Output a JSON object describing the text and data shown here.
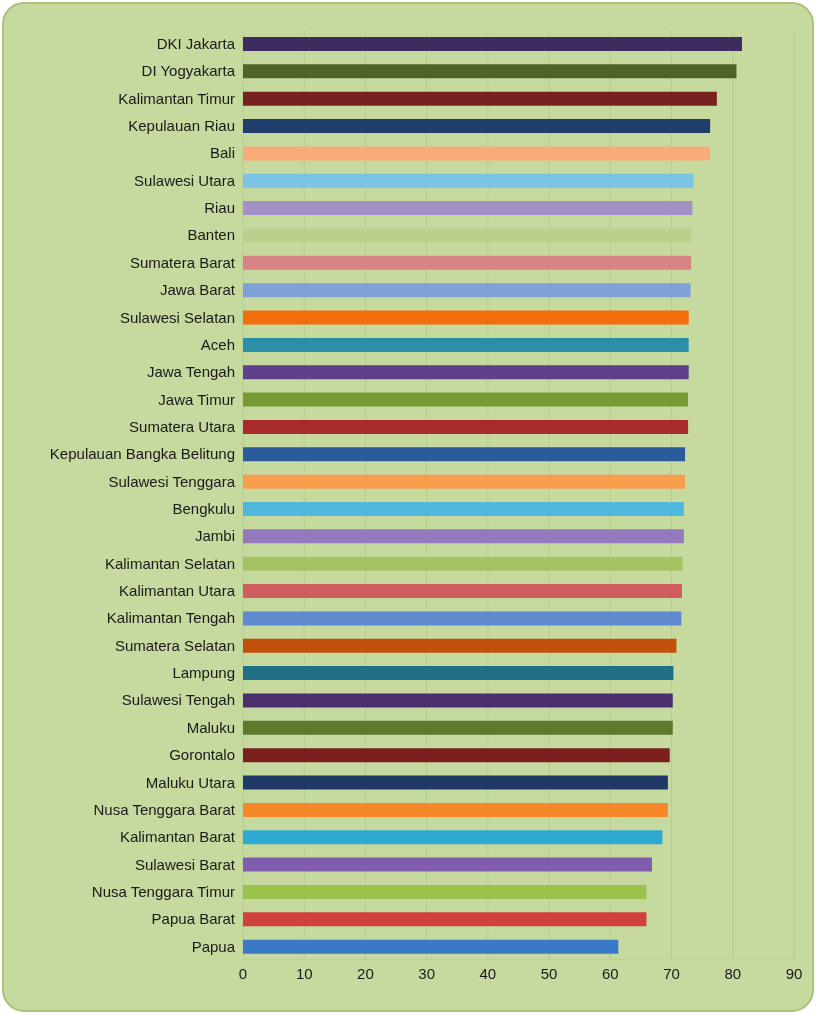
{
  "chart_data": {
    "type": "bar",
    "orientation": "horizontal",
    "categories": [
      "DKI Jakarta",
      "DI Yogyakarta",
      "Kalimantan Timur",
      "Kepulauan Riau",
      "Bali",
      "Sulawesi Utara",
      "Riau",
      "Banten",
      "Sumatera Barat",
      "Jawa Barat",
      "Sulawesi Selatan",
      "Aceh",
      "Jawa Tengah",
      "Jawa Timur",
      "Sumatera Utara",
      "Kepulauan Bangka Belitung",
      "Sulawesi Tenggara",
      "Bengkulu",
      "Jambi",
      "Kalimantan Selatan",
      "Kalimantan Utara",
      "Kalimantan Tengah",
      "Sumatera Selatan",
      "Lampung",
      "Sulawesi Tengah",
      "Maluku",
      "Gorontalo",
      "Maluku Utara",
      "Nusa Tenggara Barat",
      "Kalimantan Barat",
      "Sulawesi Barat",
      "Nusa Tenggara Timur",
      "Papua Barat",
      "Papua"
    ],
    "values": [
      81.5,
      80.6,
      77.4,
      76.3,
      76.3,
      73.6,
      73.4,
      73.2,
      73.2,
      73.1,
      72.8,
      72.8,
      72.8,
      72.7,
      72.7,
      72.2,
      72.2,
      72.0,
      72.0,
      71.8,
      71.7,
      71.6,
      70.8,
      70.3,
      70.2,
      70.2,
      69.7,
      69.4,
      69.4,
      68.5,
      66.8,
      65.9,
      65.9,
      61.3
    ],
    "colors": [
      "#3f2c5e",
      "#4f6228",
      "#772121",
      "#1f3e6e",
      "#f9ab7a",
      "#79c5e3",
      "#a490c4",
      "#bcd08c",
      "#d88484",
      "#7ea1d8",
      "#f36e0c",
      "#2b8fa9",
      "#5e3f8c",
      "#769a33",
      "#a82a2a",
      "#2a5c9c",
      "#f99e4f",
      "#4fb8dc",
      "#9479bd",
      "#a4c464",
      "#d05e5e",
      "#5f8ad0",
      "#c0500a",
      "#1f6f85",
      "#4a2f6e",
      "#5f7a2c",
      "#7a1e1e",
      "#1f3a66",
      "#f7882a",
      "#2eaad2",
      "#7f5cae",
      "#9ac24c",
      "#d24040",
      "#3a78c8"
    ],
    "xlim": [
      0,
      90
    ],
    "xticks": [
      0,
      10,
      20,
      30,
      40,
      50,
      60,
      70,
      80,
      90
    ],
    "grid": "x"
  }
}
